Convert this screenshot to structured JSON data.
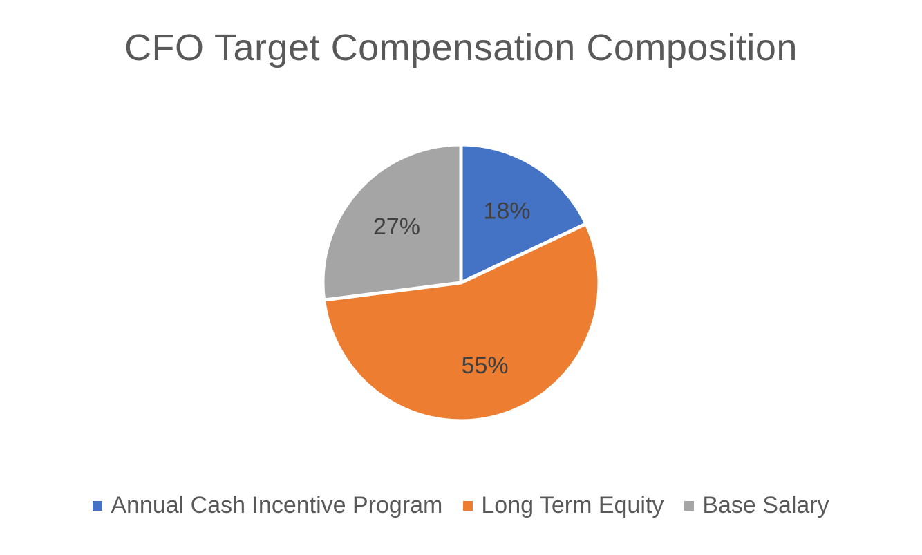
{
  "chart_data": {
    "type": "pie",
    "title": "CFO Target Compensation Composition",
    "categories": [
      "Annual Cash Incentive Program",
      "Long Term Equity",
      "Base Salary"
    ],
    "values": [
      18,
      55,
      27
    ],
    "labels": [
      "18%",
      "55%",
      "27%"
    ],
    "colors": [
      "#4472C4",
      "#ED7D31",
      "#A5A5A5"
    ],
    "legend_position": "bottom",
    "start_angle": "12 o'clock, clockwise"
  },
  "legend": [
    {
      "label": "Annual Cash Incentive Program",
      "color": "#4472C4"
    },
    {
      "label": "Long Term Equity",
      "color": "#ED7D31"
    },
    {
      "label": "Base Salary",
      "color": "#A5A5A5"
    }
  ]
}
